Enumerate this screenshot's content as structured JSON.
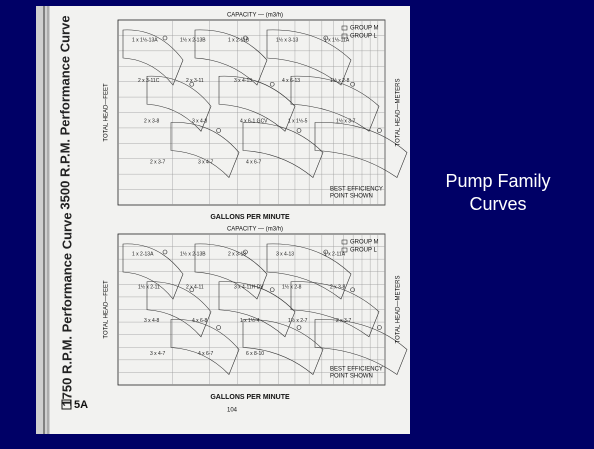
{
  "slide": {
    "title_lines": [
      "Pump Family",
      "Curves"
    ]
  },
  "scan": {
    "section": "5A",
    "page_number": "104",
    "charts": [
      {
        "title": "3500 R.P.M. Performance Curve",
        "capacity_label": "CAPACITY — (m3/h)",
        "x_label": "GALLONS PER MINUTE",
        "y_label": "TOTAL HEAD—FEET",
        "y2_label": "TOTAL HEAD—METERS",
        "legend": [
          "GROUP M",
          "GROUP L"
        ],
        "note": [
          "BEST EFFICIENCY",
          "POINT SHOWN"
        ],
        "pumps": [
          "1 x 1½-13A",
          "1½ x 2-13B",
          "1 x 2-11B",
          "1½ x 3-13",
          "1 x 1½-11A",
          "2 x 3-11C",
          "2 x 3-11",
          "3 x 4-13",
          "4 x 6-13",
          "1½ x 2-8",
          "2 x 3-8",
          "3 x 4-8",
          "4 x 6-1 GCV",
          "1 x 1½-5",
          "1½ x 3-7",
          "2 x 3-7",
          "3 x 4-7",
          "4 x 6-7"
        ]
      },
      {
        "title": "1750 R.P.M. Performance Curve",
        "capacity_label": "CAPACITY — (m3/h)",
        "x_label": "GALLONS PER MINUTE",
        "y_label": "TOTAL HEAD—FEET",
        "y2_label": "TOTAL HEAD—METERS",
        "legend": [
          "GROUP M",
          "GROUP L"
        ],
        "note": [
          "BEST EFFICIENCY",
          "POINT SHOWN"
        ],
        "pumps": [
          "1 x 2-13A",
          "1½ x 2-13B",
          "2 x 3-13",
          "3 x 4-13",
          "1 x 2-11A",
          "1½ x 2-11",
          "2 x 4-11",
          "3 x 4-11H DV",
          "1½ x 2-8",
          "2 x 3-8",
          "3 x 4-8",
          "4 x 6-8",
          "1 x 1½-4",
          "1½ x 2-7",
          "2 x 3-7",
          "3 x 4-7",
          "4 x 6-7",
          "6 x 8-10"
        ]
      }
    ]
  }
}
